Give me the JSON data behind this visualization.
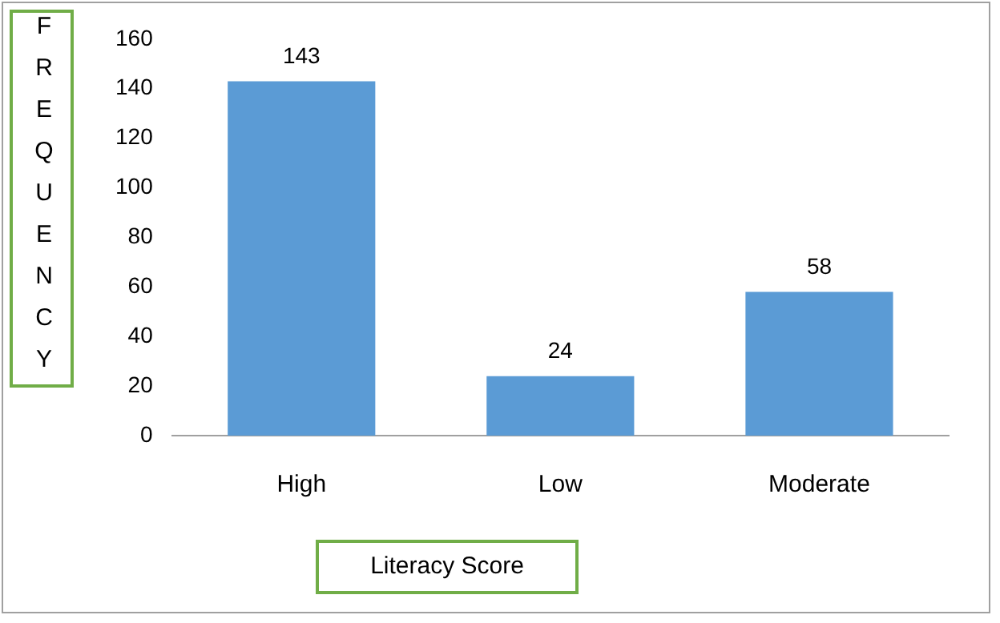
{
  "chart_data": {
    "type": "bar",
    "xlabel": "Literacy Score",
    "ylabel": "FREQUENCY",
    "categories": [
      "High",
      "Low",
      "Moderate"
    ],
    "values": [
      143,
      24,
      58
    ],
    "color": "#5b9bd5",
    "ylim": [
      0,
      160
    ],
    "yticks": [
      0,
      20,
      40,
      60,
      80,
      100,
      120,
      140,
      160
    ],
    "grid": false,
    "legend": false,
    "data_labels": true
  }
}
